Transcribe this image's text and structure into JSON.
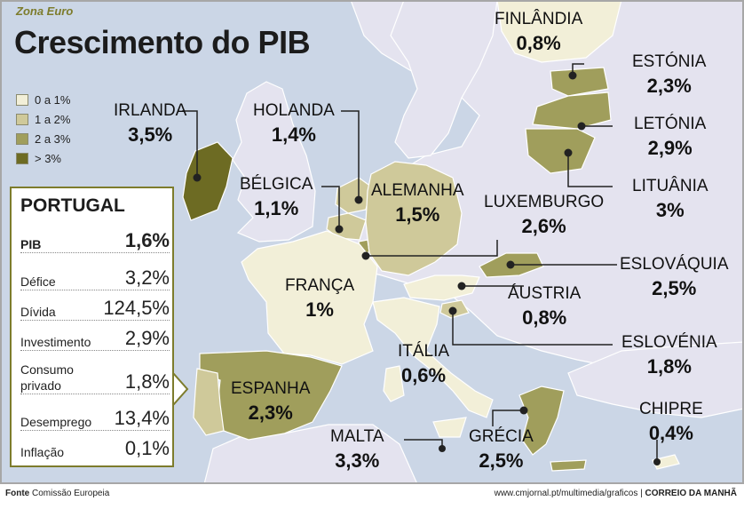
{
  "header": {
    "kicker": "Zona Euro",
    "title": "Crescimento do PIB"
  },
  "legend": [
    {
      "label": "0 a 1%",
      "color": "#f2efd8"
    },
    {
      "label": "1 a 2%",
      "color": "#cfc99a"
    },
    {
      "label": "2 a 3%",
      "color": "#a09e5c"
    },
    {
      "label": "> 3%",
      "color": "#6d6b23"
    }
  ],
  "colors": {
    "sea": "#cbd6e6",
    "non_euro": "#e4e3ef",
    "border_accent": "#7d7c2c",
    "frame": "#a7a7a7"
  },
  "countries": {
    "irlanda": {
      "name": "IRLANDA",
      "value": "3,5%"
    },
    "holanda": {
      "name": "HOLANDA",
      "value": "1,4%"
    },
    "belgica": {
      "name": "BÉLGICA",
      "value": "1,1%"
    },
    "alemanha": {
      "name": "ALEMANHA",
      "value": "1,5%"
    },
    "luxemburgo": {
      "name": "LUXEMBURGO",
      "value": "2,6%"
    },
    "finlandia": {
      "name": "FINLÂNDIA",
      "value": "0,8%"
    },
    "estonia": {
      "name": "ESTÓNIA",
      "value": "2,3%"
    },
    "letonia": {
      "name": "LETÓNIA",
      "value": "2,9%"
    },
    "lituania": {
      "name": "LITUÂNIA",
      "value": "3%"
    },
    "franca": {
      "name": "FRANÇA",
      "value": "1%"
    },
    "eslovaquia": {
      "name": "ESLOVÁQUIA",
      "value": "2,5%"
    },
    "austria": {
      "name": "ÁUSTRIA",
      "value": "0,8%"
    },
    "eslovenia": {
      "name": "ESLOVÉNIA",
      "value": "1,8%"
    },
    "italia": {
      "name": "ITÁLIA",
      "value": "0,6%"
    },
    "espanha": {
      "name": "ESPANHA",
      "value": "2,3%"
    },
    "malta": {
      "name": "MALTA",
      "value": "3,3%"
    },
    "grecia": {
      "name": "GRÉCIA",
      "value": "2,5%"
    },
    "chipre": {
      "name": "CHIPRE",
      "value": "0,4%"
    }
  },
  "portugal": {
    "title": "PORTUGAL",
    "rows": [
      {
        "label": "PIB",
        "value": "1,6%"
      },
      {
        "label": "Défice",
        "value": "3,2%"
      },
      {
        "label": "Dívida",
        "value": "124,5%"
      },
      {
        "label": "Investimento",
        "value": "2,9%"
      },
      {
        "label": "Consumo privado",
        "value": "1,8%"
      },
      {
        "label": "Desemprego",
        "value": "13,4%"
      },
      {
        "label": "Inflação",
        "value": "0,1%"
      }
    ]
  },
  "footer": {
    "source_label": "Fonte",
    "source": "Comissão Europeia",
    "url": "www.cmjornal.pt/multimedia/graficos",
    "brand": "CORREIO DA MANHÃ"
  }
}
